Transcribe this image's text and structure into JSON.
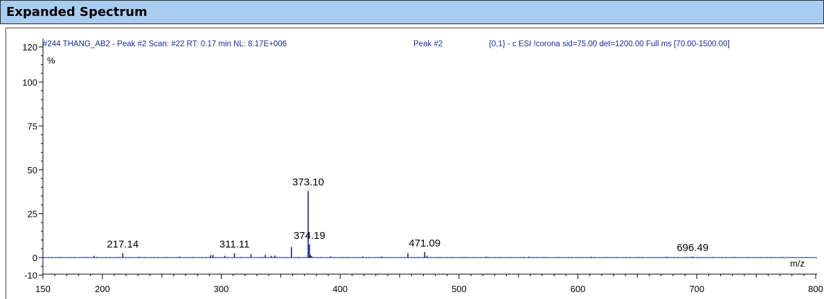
{
  "panel": {
    "title": "Expanded Spectrum"
  },
  "chart_data": {
    "type": "bar",
    "header": {
      "scan_info": "#244 THANG_AB2 - Peak #2 Scan: #22  RT: 0.17 min NL: 8.17E+006",
      "peak": "Peak #2",
      "method": "{0,1}  - c ESI !corona sid=75.00  det=1200.00 Full ms [70.00-1500.00]"
    },
    "y_unit": "%",
    "x_unit": "m/z",
    "xlim": [
      150,
      800
    ],
    "ylim": [
      -10,
      120
    ],
    "x_ticks": [
      "150",
      "200",
      "300",
      "400",
      "500",
      "600",
      "700",
      "800"
    ],
    "y_ticks": [
      "-10",
      "0",
      "25",
      "50",
      "75",
      "100",
      "120"
    ],
    "grid": false,
    "color": "#1c1c8c",
    "peaks": [
      {
        "mz": 373.1,
        "intensity": 38,
        "label": "373.10"
      },
      {
        "mz": 374.19,
        "intensity": 7.5,
        "label": "374.19"
      },
      {
        "mz": 217.14,
        "intensity": 2.5,
        "label": "217.14"
      },
      {
        "mz": 311.11,
        "intensity": 2.5,
        "label": "311.11"
      },
      {
        "mz": 471.09,
        "intensity": 3.2,
        "label": "471.09"
      },
      {
        "mz": 696.49,
        "intensity": 0.6,
        "label": "696.49"
      },
      {
        "mz": 359.0,
        "intensity": 6.0
      },
      {
        "mz": 457.0,
        "intensity": 2.5
      },
      {
        "mz": 325.0,
        "intensity": 2.0
      },
      {
        "mz": 193.0,
        "intensity": 1.0
      },
      {
        "mz": 291.0,
        "intensity": 1.3
      },
      {
        "mz": 293.0,
        "intensity": 1.5
      },
      {
        "mz": 303.0,
        "intensity": 1.0
      },
      {
        "mz": 337.0,
        "intensity": 1.5
      },
      {
        "mz": 342.0,
        "intensity": 1.0
      },
      {
        "mz": 345.0,
        "intensity": 1.2
      },
      {
        "mz": 375.0,
        "intensity": 1.5
      },
      {
        "mz": 376.0,
        "intensity": 0.8
      },
      {
        "mz": 392.0,
        "intensity": 0.7
      },
      {
        "mz": 419.0,
        "intensity": 0.6
      },
      {
        "mz": 435.0,
        "intensity": 0.6
      },
      {
        "mz": 473.0,
        "intensity": 1.0
      },
      {
        "mz": 265.0,
        "intensity": 0.6
      },
      {
        "mz": 231.0,
        "intensity": 0.5
      },
      {
        "mz": 523.0,
        "intensity": 0.5
      },
      {
        "mz": 559.0,
        "intensity": 0.5
      },
      {
        "mz": 611.0,
        "intensity": 0.5
      },
      {
        "mz": 675.0,
        "intensity": 0.5
      }
    ]
  }
}
